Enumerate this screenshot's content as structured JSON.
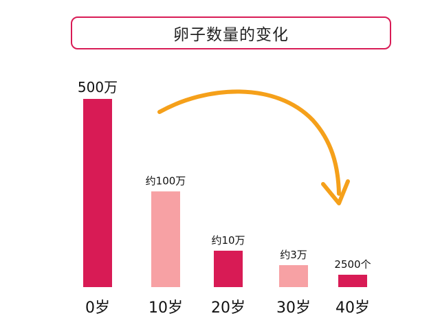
{
  "title": "卵子数量的变化",
  "colors": {
    "accent": "#d81b55",
    "light": "#f7a1a4",
    "arrow": "#f5a01a",
    "text": "#111111"
  },
  "chart_data": {
    "type": "bar",
    "title": "卵子数量的变化",
    "categories": [
      "0岁",
      "10岁",
      "20岁",
      "30岁",
      "40岁"
    ],
    "values": [
      5000000,
      1000000,
      100000,
      30000,
      2500
    ],
    "data_labels": [
      "500万",
      "约100万",
      "约10万",
      "约3万",
      "2500个"
    ],
    "bar_colors": [
      "#d81b55",
      "#f7a1a4",
      "#d81b55",
      "#f7a1a4",
      "#d81b55"
    ],
    "grid": false,
    "legend": "none",
    "annotation": "curved arrow from top-left to 40岁 indicating decrease"
  }
}
